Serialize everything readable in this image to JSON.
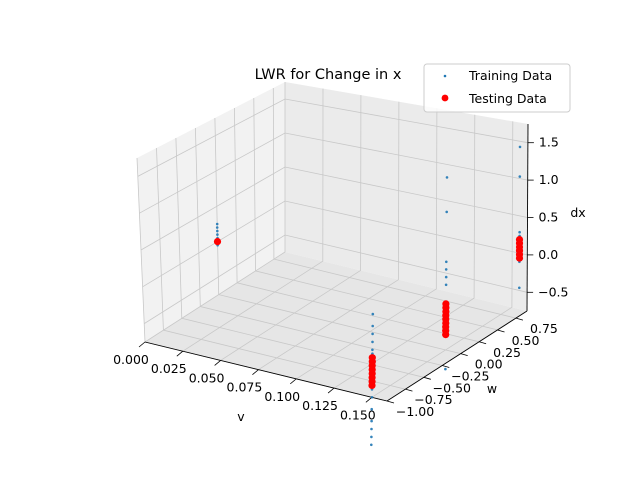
{
  "chart_data": {
    "type": "scatter",
    "projection": "3d",
    "title": "LWR for Change in x",
    "xlabel": "v",
    "ylabel": "w",
    "zlabel": "dx",
    "x_ticks": [
      "0.000",
      "0.025",
      "0.050",
      "0.075",
      "0.100",
      "0.125",
      "0.150"
    ],
    "y_ticks": [
      "−1.00",
      "−0.75",
      "−0.50",
      "−0.25",
      "0.00",
      "0.25",
      "0.50",
      "0.75"
    ],
    "z_ticks": [
      "−0.5",
      "0.0",
      "0.5",
      "1.0",
      "1.5"
    ],
    "xlim": [
      0,
      0.16
    ],
    "ylim": [
      -1.0,
      0.9
    ],
    "zlim": [
      -0.75,
      1.75
    ],
    "grid": true,
    "legend_position": "top-right",
    "series": [
      {
        "name": "Training Data",
        "color": "#1f77b4",
        "marker": "small-dot",
        "points": [
          [
            0.0,
            0.0,
            0.05
          ],
          [
            0.0,
            0.0,
            0.1
          ],
          [
            0.0,
            0.0,
            0.15
          ],
          [
            0.0,
            0.0,
            0.2
          ],
          [
            0.0,
            0.0,
            -0.05
          ],
          [
            0.0,
            0.0,
            0.25
          ],
          [
            0.15,
            -1.0,
            -0.25
          ],
          [
            0.15,
            -1.0,
            -0.3
          ],
          [
            0.15,
            -1.0,
            -0.35
          ],
          [
            0.15,
            -1.0,
            -0.4
          ],
          [
            0.15,
            -1.0,
            -0.45
          ],
          [
            0.15,
            -1.0,
            -0.5
          ],
          [
            0.15,
            -1.0,
            -0.55
          ],
          [
            0.15,
            -1.0,
            -0.6
          ],
          [
            0.15,
            -1.0,
            -0.65
          ],
          [
            0.15,
            -1.0,
            -0.2
          ],
          [
            0.15,
            -1.0,
            -0.15
          ],
          [
            0.15,
            -1.0,
            -0.05
          ],
          [
            0.15,
            -1.0,
            0.05
          ],
          [
            0.15,
            -1.0,
            0.15
          ],
          [
            0.15,
            -1.0,
            0.3
          ],
          [
            0.15,
            -1.0,
            -0.75
          ],
          [
            0.15,
            -1.0,
            -0.9
          ],
          [
            0.15,
            -1.0,
            -1.05
          ],
          [
            0.15,
            -1.0,
            -1.15
          ],
          [
            0.15,
            -1.0,
            -1.25
          ],
          [
            0.15,
            -1.0,
            -1.35
          ],
          [
            0.15,
            0.0,
            -0.15
          ],
          [
            0.15,
            0.0,
            -0.2
          ],
          [
            0.15,
            0.0,
            -0.25
          ],
          [
            0.15,
            0.0,
            -0.3
          ],
          [
            0.15,
            0.0,
            -0.35
          ],
          [
            0.15,
            0.0,
            -0.4
          ],
          [
            0.15,
            0.0,
            -0.45
          ],
          [
            0.15,
            0.0,
            -0.5
          ],
          [
            0.15,
            0.0,
            -0.55
          ],
          [
            0.15,
            0.0,
            0.1
          ],
          [
            0.15,
            0.0,
            0.2
          ],
          [
            0.15,
            0.0,
            0.3
          ],
          [
            0.15,
            0.0,
            0.4
          ],
          [
            0.15,
            0.0,
            1.05
          ],
          [
            0.15,
            0.0,
            1.5
          ],
          [
            0.15,
            0.0,
            -1.0
          ],
          [
            0.15,
            1.0,
            0.0
          ],
          [
            0.15,
            1.0,
            0.05
          ],
          [
            0.15,
            1.0,
            0.1
          ],
          [
            0.15,
            1.0,
            0.15
          ],
          [
            0.15,
            1.0,
            0.2
          ],
          [
            0.15,
            1.0,
            -0.05
          ],
          [
            0.15,
            1.0,
            -0.1
          ],
          [
            0.15,
            1.0,
            -0.15
          ],
          [
            0.15,
            1.0,
            -0.2
          ],
          [
            0.15,
            1.0,
            0.95
          ],
          [
            0.15,
            1.0,
            1.35
          ],
          [
            0.15,
            1.0,
            -0.55
          ]
        ]
      },
      {
        "name": "Testing Data",
        "color": "#ff0000",
        "marker": "circle",
        "points": [
          [
            0.0,
            0.0,
            0.0
          ],
          [
            0.15,
            -1.0,
            -0.25
          ],
          [
            0.15,
            -1.0,
            -0.3
          ],
          [
            0.15,
            -1.0,
            -0.35
          ],
          [
            0.15,
            -1.0,
            -0.4
          ],
          [
            0.15,
            -1.0,
            -0.45
          ],
          [
            0.15,
            -1.0,
            -0.5
          ],
          [
            0.15,
            -1.0,
            -0.55
          ],
          [
            0.15,
            -1.0,
            -0.6
          ],
          [
            0.15,
            0.0,
            -0.15
          ],
          [
            0.15,
            0.0,
            -0.2
          ],
          [
            0.15,
            0.0,
            -0.25
          ],
          [
            0.15,
            0.0,
            -0.3
          ],
          [
            0.15,
            0.0,
            -0.35
          ],
          [
            0.15,
            0.0,
            -0.4
          ],
          [
            0.15,
            0.0,
            -0.45
          ],
          [
            0.15,
            0.0,
            -0.5
          ],
          [
            0.15,
            0.0,
            -0.55
          ],
          [
            0.15,
            1.0,
            0.1
          ],
          [
            0.15,
            1.0,
            0.05
          ],
          [
            0.15,
            1.0,
            0.0
          ],
          [
            0.15,
            1.0,
            -0.05
          ],
          [
            0.15,
            1.0,
            -0.1
          ],
          [
            0.15,
            1.0,
            -0.15
          ]
        ]
      }
    ]
  }
}
